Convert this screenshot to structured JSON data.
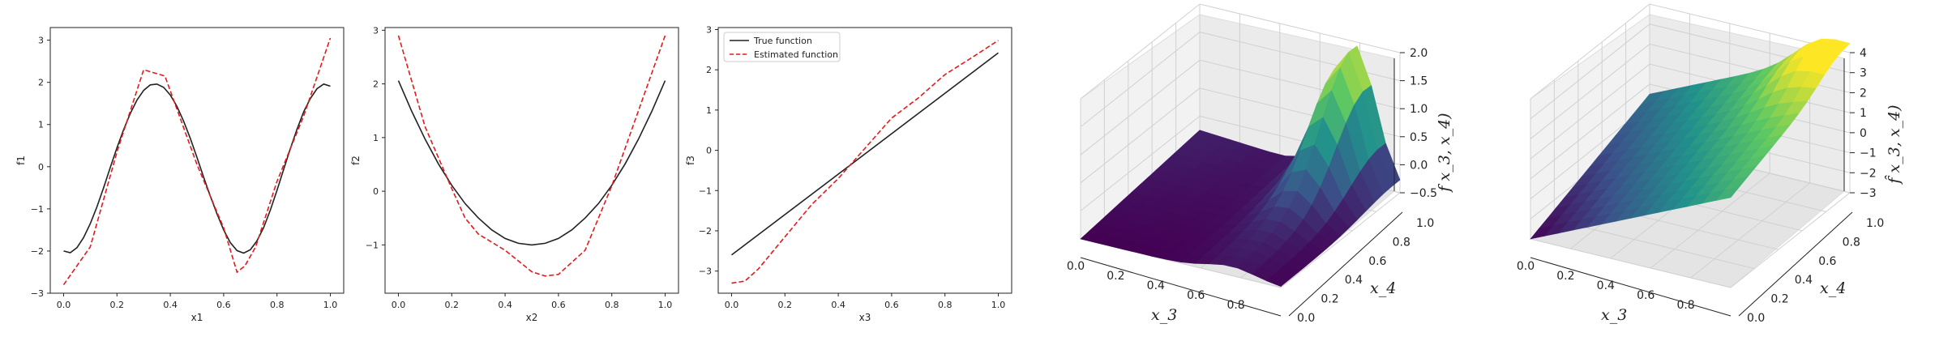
{
  "chart_data": [
    {
      "type": "line",
      "xlabel": "x1",
      "ylabel": "f1",
      "xlim": [
        -0.05,
        1.05
      ],
      "ylim": [
        -3.0,
        3.3
      ],
      "xticks": [
        "0.0",
        "0.2",
        "0.4",
        "0.6",
        "0.8",
        "1.0"
      ],
      "yticks": [
        "-3",
        "-2",
        "-1",
        "0",
        "1",
        "2",
        "3"
      ],
      "series": [
        {
          "color": "#222222",
          "dash": "solid",
          "x": [
            0.0,
            0.025,
            0.05,
            0.075,
            0.1,
            0.125,
            0.15,
            0.175,
            0.2,
            0.225,
            0.25,
            0.275,
            0.3,
            0.325,
            0.35,
            0.375,
            0.4,
            0.425,
            0.45,
            0.475,
            0.5,
            0.525,
            0.55,
            0.575,
            0.6,
            0.625,
            0.65,
            0.675,
            0.7,
            0.725,
            0.75,
            0.775,
            0.8,
            0.825,
            0.85,
            0.875,
            0.9,
            0.925,
            0.95,
            0.975,
            1.0
          ],
          "y": [
            -2.0,
            -2.04,
            -1.92,
            -1.68,
            -1.35,
            -0.95,
            -0.5,
            -0.02,
            0.45,
            0.88,
            1.26,
            1.58,
            1.81,
            1.94,
            1.96,
            1.88,
            1.7,
            1.43,
            1.08,
            0.67,
            0.22,
            -0.25,
            -0.7,
            -1.12,
            -1.5,
            -1.8,
            -1.99,
            -2.05,
            -1.97,
            -1.76,
            -1.44,
            -1.03,
            -0.56,
            -0.06,
            0.43,
            0.89,
            1.3,
            1.62,
            1.85,
            1.96,
            1.91
          ]
        },
        {
          "color": "#e41a1c",
          "dash": "dashed",
          "x": [
            0.0,
            0.1,
            0.2,
            0.3,
            0.38,
            0.5,
            0.6,
            0.65,
            0.68,
            0.72,
            0.8,
            0.9,
            1.0
          ],
          "y": [
            -2.8,
            -1.9,
            0.35,
            2.3,
            2.15,
            0.05,
            -1.45,
            -2.5,
            -2.35,
            -1.9,
            -0.35,
            1.2,
            3.05
          ]
        }
      ]
    },
    {
      "type": "line",
      "xlabel": "x2",
      "ylabel": "f2",
      "xlim": [
        -0.05,
        1.05
      ],
      "ylim": [
        -1.9,
        3.05
      ],
      "xticks": [
        "0.0",
        "0.2",
        "0.4",
        "0.6",
        "0.8",
        "1.0"
      ],
      "yticks": [
        "-1",
        "0",
        "1",
        "2",
        "3"
      ],
      "series": [
        {
          "color": "#222222",
          "dash": "solid",
          "x": [
            0.0,
            0.05,
            0.1,
            0.15,
            0.2,
            0.25,
            0.3,
            0.35,
            0.4,
            0.45,
            0.5,
            0.55,
            0.6,
            0.65,
            0.7,
            0.75,
            0.8,
            0.85,
            0.9,
            0.95,
            1.0
          ],
          "y": [
            2.06,
            1.49,
            0.97,
            0.51,
            0.11,
            -0.23,
            -0.5,
            -0.72,
            -0.88,
            -0.97,
            -1.0,
            -0.97,
            -0.88,
            -0.72,
            -0.5,
            -0.23,
            0.11,
            0.51,
            0.97,
            1.49,
            2.06
          ]
        },
        {
          "color": "#e41a1c",
          "dash": "dashed",
          "x": [
            0.0,
            0.1,
            0.2,
            0.25,
            0.3,
            0.4,
            0.5,
            0.55,
            0.6,
            0.7,
            0.8,
            0.9,
            1.0
          ],
          "y": [
            2.9,
            1.2,
            0.05,
            -0.5,
            -0.8,
            -1.1,
            -1.5,
            -1.58,
            -1.55,
            -1.1,
            0.1,
            1.5,
            2.9
          ]
        }
      ]
    },
    {
      "type": "line",
      "xlabel": "x3",
      "ylabel": "f3",
      "xlim": [
        -0.05,
        1.05
      ],
      "ylim": [
        -3.55,
        3.05
      ],
      "xticks": [
        "0.0",
        "0.2",
        "0.4",
        "0.6",
        "0.8",
        "1.0"
      ],
      "yticks": [
        "-3",
        "-2",
        "-1",
        "0",
        "1",
        "2",
        "3"
      ],
      "legend": {
        "position": "upper-left",
        "entries": [
          "True function",
          "Estimated function"
        ]
      },
      "series": [
        {
          "name": "True function",
          "color": "#222222",
          "dash": "solid",
          "x": [
            0.0,
            1.0
          ],
          "y": [
            -2.6,
            2.42
          ]
        },
        {
          "name": "Estimated function",
          "color": "#e41a1c",
          "dash": "dashed",
          "x": [
            0.0,
            0.05,
            0.1,
            0.2,
            0.3,
            0.4,
            0.5,
            0.6,
            0.7,
            0.8,
            0.9,
            1.0
          ],
          "y": [
            -3.3,
            -3.25,
            -2.95,
            -2.15,
            -1.35,
            -0.7,
            0.05,
            0.8,
            1.3,
            1.88,
            2.3,
            2.73
          ]
        }
      ]
    },
    {
      "type": "surface3d",
      "xlabel": "x_3",
      "ylabel": "x_4",
      "zlabel": "f x_3, x_4)",
      "xticks": [
        "0.0",
        "0.2",
        "0.4",
        "0.6",
        "0.8",
        "1.0"
      ],
      "yticks": [
        "0.0",
        "0.2",
        "0.4",
        "0.6",
        "0.8",
        "1.0"
      ],
      "zticks": [
        "-0.5",
        "0.0",
        "0.5",
        "1.0",
        "1.5",
        "2.0"
      ],
      "zlim": [
        -0.5,
        2.0
      ],
      "colormap": "viridis"
    },
    {
      "type": "surface3d",
      "xlabel": "x_3",
      "ylabel": "x_4",
      "zlabel": "f̂ x_3, x_4)",
      "xticks": [
        "0.0",
        "0.2",
        "0.4",
        "0.6",
        "0.8",
        "1.0"
      ],
      "yticks": [
        "0.0",
        "0.2",
        "0.4",
        "0.6",
        "0.8",
        "1.0"
      ],
      "zticks": [
        "-3",
        "-2",
        "-1",
        "0",
        "1",
        "2",
        "3",
        "4"
      ],
      "zlim": [
        -3,
        4
      ],
      "colormap": "viridis"
    }
  ]
}
